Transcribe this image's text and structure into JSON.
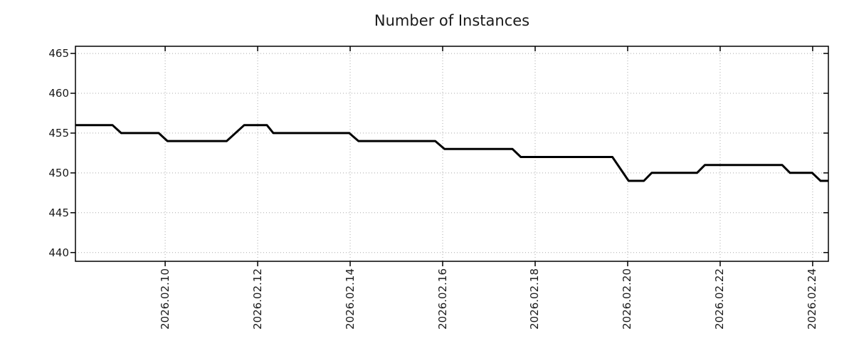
{
  "chart_data": {
    "type": "line",
    "title": "Number of Instances",
    "xlabel": "",
    "ylabel": "",
    "x_unit": "day of February 2026 (decimal)",
    "xlim": [
      8.06,
      24.34
    ],
    "ylim": [
      438.9,
      465.9
    ],
    "grid": "dotted",
    "legend_position": "none",
    "x_ticks": {
      "values": [
        10,
        12,
        14,
        16,
        18,
        20,
        22,
        24
      ],
      "labels": [
        "2026.02.10",
        "2026.02.12",
        "2026.02.14",
        "2026.02.16",
        "2026.02.18",
        "2026.02.20",
        "2026.02.22",
        "2026.02.24"
      ]
    },
    "y_ticks": {
      "values": [
        440,
        445,
        450,
        455,
        460,
        465
      ],
      "labels": [
        "440",
        "445",
        "450",
        "455",
        "460",
        "465"
      ]
    },
    "series": [
      {
        "name": "instances",
        "points": [
          [
            8.06,
            456
          ],
          [
            8.86,
            456
          ],
          [
            9.05,
            455
          ],
          [
            9.86,
            455
          ],
          [
            10.05,
            454
          ],
          [
            11.33,
            454
          ],
          [
            11.71,
            456
          ],
          [
            12.2,
            456
          ],
          [
            12.34,
            455
          ],
          [
            13.98,
            455
          ],
          [
            14.18,
            454
          ],
          [
            15.84,
            454
          ],
          [
            16.04,
            453
          ],
          [
            17.51,
            453
          ],
          [
            17.69,
            452
          ],
          [
            19.67,
            452
          ],
          [
            20.02,
            449
          ],
          [
            20.35,
            449
          ],
          [
            20.52,
            450
          ],
          [
            21.5,
            450
          ],
          [
            21.67,
            451
          ],
          [
            23.34,
            451
          ],
          [
            23.51,
            450
          ],
          [
            23.99,
            450
          ],
          [
            24.17,
            449
          ],
          [
            24.34,
            449
          ]
        ]
      }
    ],
    "colors": {
      "line": "#000000",
      "grid": "#a8a8a8",
      "border": "#000000",
      "text": "#1a1a1a",
      "background": "#ffffff"
    },
    "line_width": 3
  }
}
